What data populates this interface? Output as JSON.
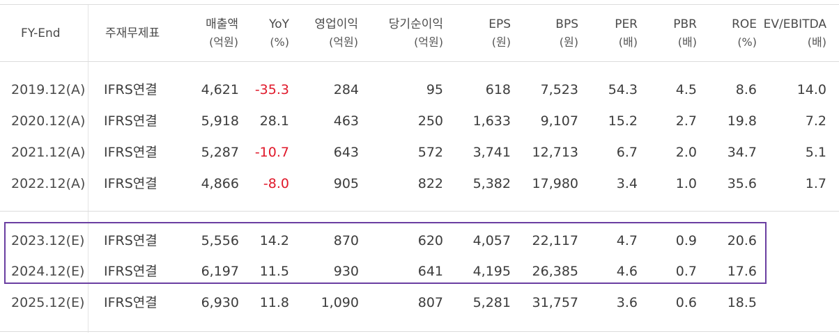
{
  "headers": [
    {
      "key": "fy_end",
      "line1": "FY-End",
      "line2": ""
    },
    {
      "key": "statement",
      "line1": "주재무제표",
      "line2": ""
    },
    {
      "key": "revenue",
      "line1": "매출액",
      "line2": "(억원)"
    },
    {
      "key": "yoy",
      "line1": "YoY",
      "line2": "(%)"
    },
    {
      "key": "op_income",
      "line1": "영업이익",
      "line2": "(억원)"
    },
    {
      "key": "net_income",
      "line1": "당기순이익",
      "line2": "(억원)"
    },
    {
      "key": "eps",
      "line1": "EPS",
      "line2": "(원)"
    },
    {
      "key": "bps",
      "line1": "BPS",
      "line2": "(원)"
    },
    {
      "key": "per",
      "line1": "PER",
      "line2": "(배)"
    },
    {
      "key": "pbr",
      "line1": "PBR",
      "line2": "(배)"
    },
    {
      "key": "roe",
      "line1": "ROE",
      "line2": "(%)"
    },
    {
      "key": "ev_ebitda",
      "line1": "EV/EBITDA",
      "line2": "(배)"
    }
  ],
  "rows": [
    {
      "period": "2019.12(A)",
      "statement": "IFRS연결",
      "revenue": "4,621",
      "yoy": "-35.3",
      "op_income": "284",
      "net_income": "95",
      "eps": "618",
      "bps": "7,523",
      "per": "54.3",
      "pbr": "4.5",
      "roe": "8.6",
      "ev_ebitda": "14.0"
    },
    {
      "period": "2020.12(A)",
      "statement": "IFRS연결",
      "revenue": "5,918",
      "yoy": "28.1",
      "op_income": "463",
      "net_income": "250",
      "eps": "1,633",
      "bps": "9,107",
      "per": "15.2",
      "pbr": "2.7",
      "roe": "19.8",
      "ev_ebitda": "7.2"
    },
    {
      "period": "2021.12(A)",
      "statement": "IFRS연결",
      "revenue": "5,287",
      "yoy": "-10.7",
      "op_income": "643",
      "net_income": "572",
      "eps": "3,741",
      "bps": "12,713",
      "per": "6.7",
      "pbr": "2.0",
      "roe": "34.7",
      "ev_ebitda": "5.1"
    },
    {
      "period": "2022.12(A)",
      "statement": "IFRS연결",
      "revenue": "4,866",
      "yoy": "-8.0",
      "op_income": "905",
      "net_income": "822",
      "eps": "5,382",
      "bps": "17,980",
      "per": "3.4",
      "pbr": "1.0",
      "roe": "35.6",
      "ev_ebitda": "1.7"
    },
    {
      "period": "2023.12(E)",
      "statement": "IFRS연결",
      "revenue": "5,556",
      "yoy": "14.2",
      "op_income": "870",
      "net_income": "620",
      "eps": "4,057",
      "bps": "22,117",
      "per": "4.7",
      "pbr": "0.9",
      "roe": "20.6",
      "ev_ebitda": ""
    },
    {
      "period": "2024.12(E)",
      "statement": "IFRS연결",
      "revenue": "6,197",
      "yoy": "11.5",
      "op_income": "930",
      "net_income": "641",
      "eps": "4,195",
      "bps": "26,385",
      "per": "4.6",
      "pbr": "0.7",
      "roe": "17.6",
      "ev_ebitda": ""
    },
    {
      "period": "2025.12(E)",
      "statement": "IFRS연결",
      "revenue": "6,930",
      "yoy": "11.8",
      "op_income": "1,090",
      "net_income": "807",
      "eps": "5,281",
      "bps": "31,757",
      "per": "3.6",
      "pbr": "0.6",
      "roe": "18.5",
      "ev_ebitda": ""
    }
  ],
  "highlighted_periods": [
    "2023.12(E)",
    "2024.12(E)"
  ],
  "colors": {
    "negative": "#e0182a",
    "highlight_border": "#6a3ea1",
    "gridline": "#dcdcdc"
  }
}
